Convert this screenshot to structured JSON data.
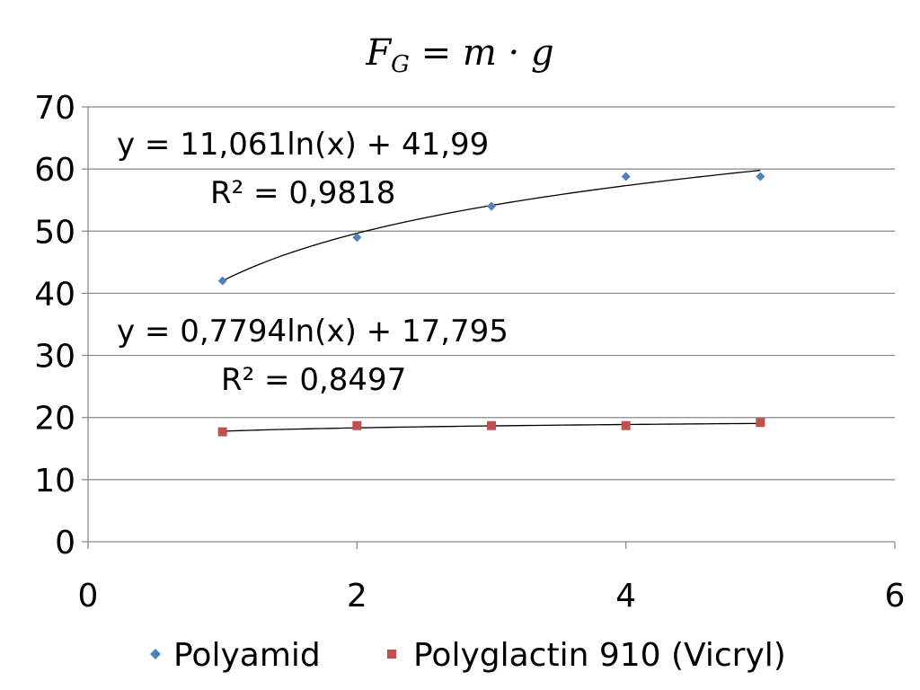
{
  "chart_data": {
    "type": "scatter",
    "title": "F_G = m · g",
    "title_parts": {
      "main": "F",
      "sub": "G",
      "rest": " = m · g"
    },
    "xlabel": "",
    "ylabel": "",
    "xlim": [
      0,
      6
    ],
    "ylim": [
      0,
      70
    ],
    "xticks": [
      0,
      2,
      4,
      6
    ],
    "yticks": [
      0,
      10,
      20,
      30,
      40,
      50,
      60,
      70
    ],
    "grid": "horizontal",
    "legend_position": "bottom",
    "series": [
      {
        "name": "Polyamid",
        "marker": "diamond",
        "color": "#4f81bd",
        "x": [
          1,
          2,
          3,
          4,
          5
        ],
        "y": [
          42,
          49,
          54,
          58.8,
          58.8
        ],
        "trendline": {
          "type": "log",
          "a": 11.061,
          "b": 41.99
        },
        "equation": "y = 11,061ln(x) + 41,99",
        "r2": "R² = 0,9818"
      },
      {
        "name": "Polyglactin 910 (Vicryl)",
        "marker": "square",
        "color": "#c0504d",
        "x": [
          1,
          2,
          3,
          4,
          5
        ],
        "y": [
          17.7,
          18.7,
          18.7,
          18.7,
          19.2
        ],
        "trendline": {
          "type": "log",
          "a": 0.7794,
          "b": 17.795
        },
        "equation": "y = 0,7794ln(x) + 17,795",
        "r2": "R² = 0,8497"
      }
    ]
  }
}
